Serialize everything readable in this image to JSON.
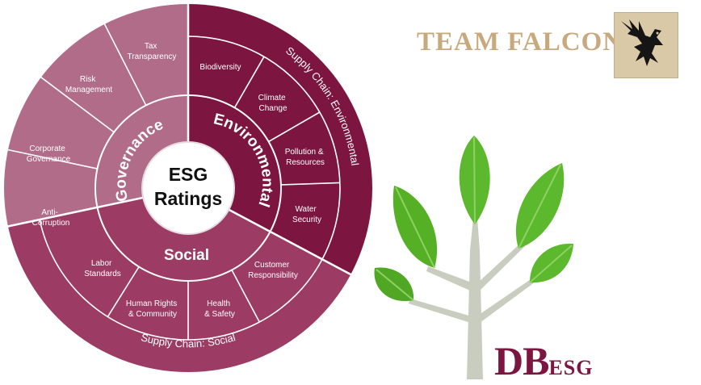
{
  "wheel": {
    "center_lines": [
      "ESG",
      "Ratings"
    ],
    "pillars": {
      "governance": "Governance",
      "environmental": "Environmental",
      "social": "Social"
    },
    "items": {
      "tax": [
        "Tax",
        "Transparency"
      ],
      "risk": [
        "Risk",
        "Management"
      ],
      "corporate": [
        "Corporate",
        "Governance"
      ],
      "anti": [
        "Anti-",
        "Corruption"
      ],
      "biodiversity": [
        "Biodiversity"
      ],
      "climate": [
        "Climate",
        "Change"
      ],
      "pollution": [
        "Pollution &",
        "Resources"
      ],
      "water": [
        "Water",
        "Security"
      ],
      "customer": [
        "Customer",
        "Responsibility"
      ],
      "health": [
        "Health",
        "& Safety"
      ],
      "human": [
        "Human Rights",
        "& Community"
      ],
      "labor": [
        "Labor",
        "Standards"
      ]
    },
    "supply_chain_environmental": "Supply Chain: Environmental",
    "supply_chain_social": "Supply Chain: Social"
  },
  "branding": {
    "team_title": "TEAM FALCON",
    "brand_main": "DB",
    "brand_suffix": "ESG"
  },
  "colors": {
    "governance": "#b06c88",
    "environmental": "#7c1640",
    "social": "#9c3b63",
    "ring_border": "#ffffff",
    "team_title": "#c8a97e",
    "leaf": "#5cb82c"
  }
}
